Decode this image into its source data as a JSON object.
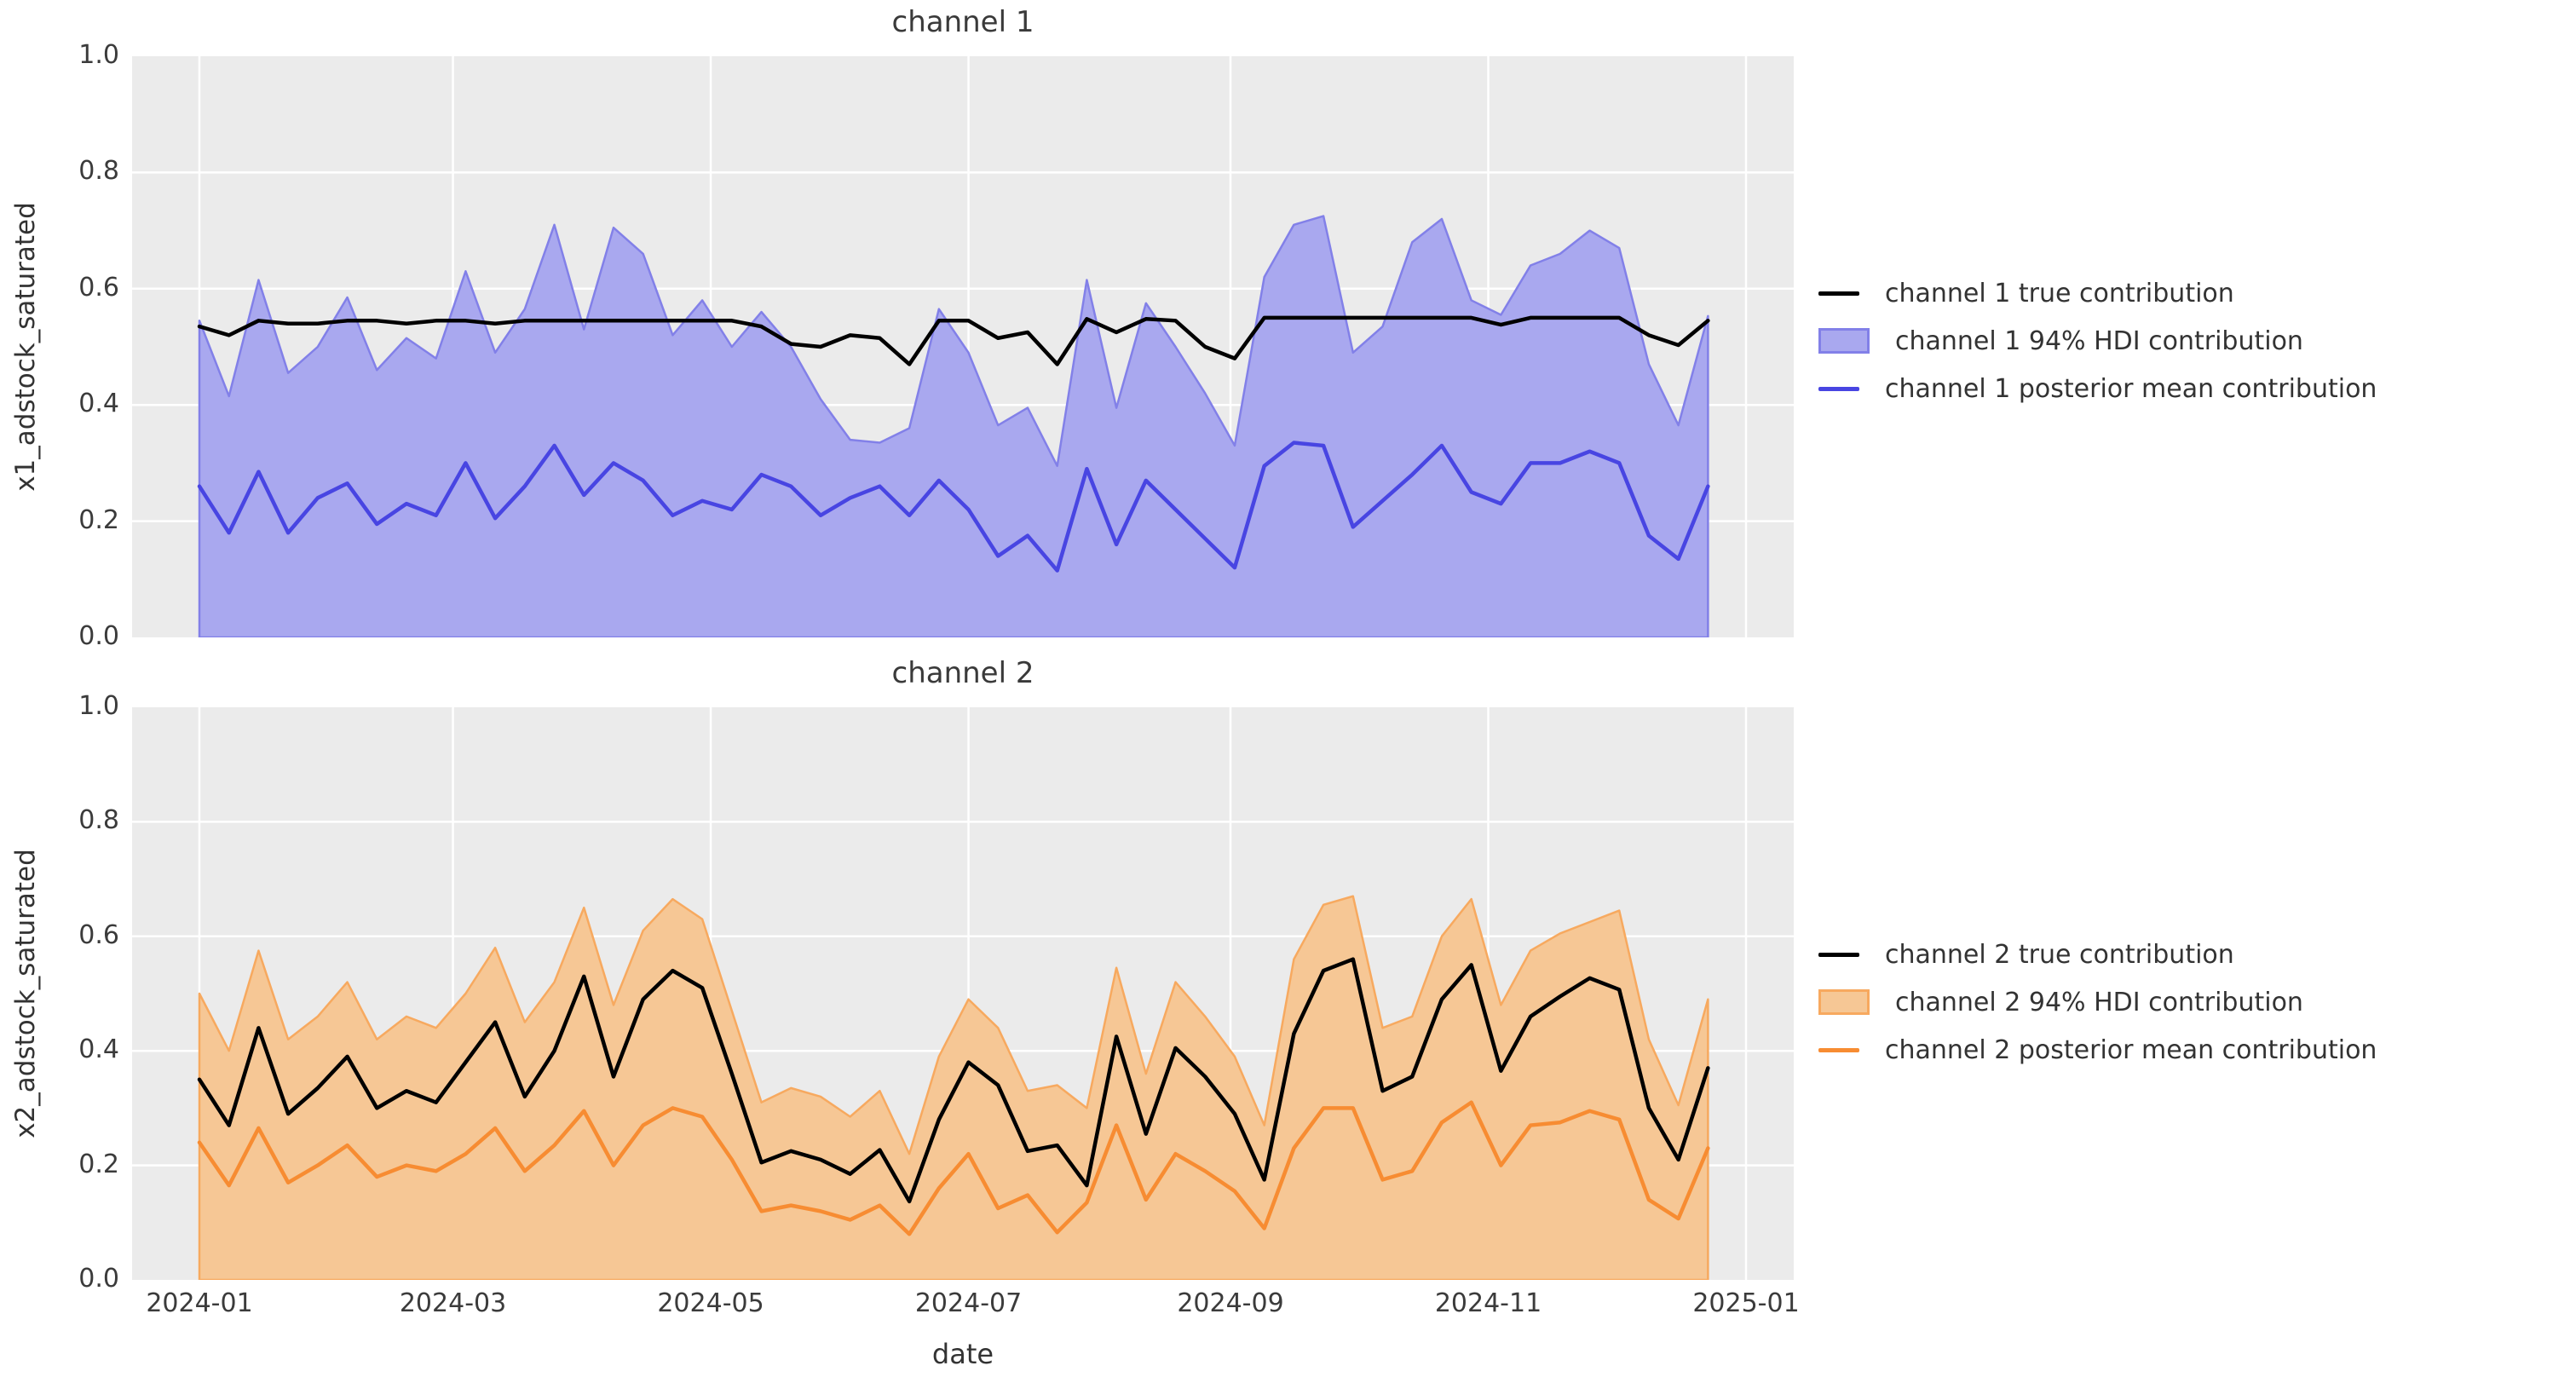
{
  "figure": {
    "background": "#ffffff",
    "plot_background": "#ebebeb",
    "grid_color": "#ffffff",
    "text_color": "#333333"
  },
  "axes": {
    "xlabel": "date",
    "y_tick_labels": [
      "0.0",
      "0.2",
      "0.4",
      "0.6",
      "0.8",
      "1.0"
    ],
    "x_ticks": [
      {
        "label": "2024-01",
        "day": 0
      },
      {
        "label": "2024-03",
        "day": 60
      },
      {
        "label": "2024-05",
        "day": 121
      },
      {
        "label": "2024-07",
        "day": 182
      },
      {
        "label": "2024-09",
        "day": 244
      },
      {
        "label": "2024-11",
        "day": 305
      },
      {
        "label": "2025-01",
        "day": 366
      }
    ]
  },
  "chart_data": [
    {
      "type": "area",
      "title": "channel 1",
      "ylabel": "x1_adstock_saturated",
      "xlabel": "date",
      "ylim": [
        0.0,
        1.0
      ],
      "x_start": "2024-01-01",
      "x_step_days": 7,
      "n_points": 52,
      "grid": true,
      "legend_position": "outside-right",
      "colors": {
        "true_line": "#000000",
        "mean_line": "#4845e2",
        "band_fill": "#a9a8ef",
        "band_edge": "#8280e8"
      },
      "legend": [
        {
          "label": "channel 1 true contribution",
          "marker": "line",
          "color": "#000000"
        },
        {
          "label": "channel 1 94% HDI contribution",
          "marker": "patch",
          "color": "#a9a8ef",
          "edge": "#8280e8"
        },
        {
          "label": "channel 1 posterior mean contribution",
          "marker": "line",
          "color": "#4845e2"
        }
      ],
      "series": [
        {
          "name": "channel 1 true contribution",
          "values": [
            0.535,
            0.52,
            0.545,
            0.54,
            0.54,
            0.545,
            0.545,
            0.54,
            0.545,
            0.545,
            0.54,
            0.545,
            0.545,
            0.545,
            0.545,
            0.545,
            0.545,
            0.545,
            0.545,
            0.535,
            0.505,
            0.5,
            0.52,
            0.515,
            0.47,
            0.545,
            0.545,
            0.515,
            0.525,
            0.47,
            0.548,
            0.525,
            0.548,
            0.545,
            0.5,
            0.48,
            0.55,
            0.55,
            0.55,
            0.55,
            0.55,
            0.55,
            0.55,
            0.55,
            0.538,
            0.55,
            0.55,
            0.55,
            0.55,
            0.52,
            0.503,
            0.545
          ]
        },
        {
          "name": "channel 1 94% HDI contribution",
          "band_low": 0.0,
          "band_high": [
            0.545,
            0.415,
            0.615,
            0.455,
            0.5,
            0.585,
            0.46,
            0.515,
            0.48,
            0.63,
            0.49,
            0.565,
            0.71,
            0.53,
            0.705,
            0.66,
            0.52,
            0.58,
            0.5,
            0.56,
            0.5,
            0.41,
            0.34,
            0.335,
            0.36,
            0.565,
            0.49,
            0.365,
            0.395,
            0.295,
            0.615,
            0.395,
            0.575,
            0.5,
            0.42,
            0.33,
            0.62,
            0.71,
            0.725,
            0.49,
            0.535,
            0.68,
            0.72,
            0.58,
            0.555,
            0.64,
            0.66,
            0.7,
            0.67,
            0.47,
            0.365,
            0.553
          ]
        },
        {
          "name": "channel 1 posterior mean contribution",
          "values": [
            0.26,
            0.18,
            0.285,
            0.18,
            0.24,
            0.265,
            0.195,
            0.23,
            0.21,
            0.3,
            0.205,
            0.26,
            0.33,
            0.245,
            0.3,
            0.27,
            0.21,
            0.235,
            0.22,
            0.28,
            0.26,
            0.21,
            0.24,
            0.26,
            0.21,
            0.27,
            0.22,
            0.14,
            0.175,
            0.115,
            0.29,
            0.16,
            0.27,
            0.22,
            0.17,
            0.12,
            0.295,
            0.335,
            0.33,
            0.19,
            0.235,
            0.28,
            0.33,
            0.25,
            0.23,
            0.3,
            0.3,
            0.32,
            0.3,
            0.175,
            0.135,
            0.26
          ]
        }
      ]
    },
    {
      "type": "area",
      "title": "channel 2",
      "ylabel": "x2_adstock_saturated",
      "xlabel": "date",
      "ylim": [
        0.0,
        1.0
      ],
      "x_start": "2024-01-01",
      "x_step_days": 7,
      "n_points": 52,
      "grid": true,
      "legend_position": "outside-right",
      "colors": {
        "true_line": "#000000",
        "mean_line": "#f78c32",
        "band_fill": "#f6c795",
        "band_edge": "#f7a95f"
      },
      "legend": [
        {
          "label": "channel 2 true contribution",
          "marker": "line",
          "color": "#000000"
        },
        {
          "label": "channel 2 94% HDI contribution",
          "marker": "patch",
          "color": "#f6c795",
          "edge": "#f7a95f"
        },
        {
          "label": "channel 2 posterior mean contribution",
          "marker": "line",
          "color": "#f78c32"
        }
      ],
      "series": [
        {
          "name": "channel 2 true contribution",
          "values": [
            0.35,
            0.27,
            0.44,
            0.29,
            0.335,
            0.39,
            0.3,
            0.33,
            0.31,
            0.38,
            0.45,
            0.32,
            0.4,
            0.53,
            0.355,
            0.49,
            0.54,
            0.51,
            0.36,
            0.205,
            0.225,
            0.21,
            0.185,
            0.227,
            0.137,
            0.28,
            0.38,
            0.34,
            0.225,
            0.235,
            0.165,
            0.425,
            0.255,
            0.405,
            0.355,
            0.29,
            0.175,
            0.43,
            0.54,
            0.56,
            0.33,
            0.355,
            0.49,
            0.55,
            0.365,
            0.46,
            0.495,
            0.527,
            0.507,
            0.3,
            0.21,
            0.37
          ]
        },
        {
          "name": "channel 2 94% HDI contribution",
          "band_low": 0.0,
          "band_high": [
            0.5,
            0.4,
            0.575,
            0.42,
            0.46,
            0.52,
            0.42,
            0.46,
            0.44,
            0.5,
            0.58,
            0.45,
            0.52,
            0.65,
            0.48,
            0.61,
            0.665,
            0.63,
            0.47,
            0.31,
            0.335,
            0.32,
            0.285,
            0.33,
            0.22,
            0.39,
            0.49,
            0.44,
            0.33,
            0.34,
            0.3,
            0.545,
            0.36,
            0.52,
            0.46,
            0.39,
            0.27,
            0.56,
            0.655,
            0.67,
            0.44,
            0.46,
            0.6,
            0.665,
            0.48,
            0.575,
            0.605,
            0.625,
            0.645,
            0.42,
            0.305,
            0.49
          ]
        },
        {
          "name": "channel 2 posterior mean contribution",
          "values": [
            0.24,
            0.165,
            0.265,
            0.17,
            0.2,
            0.235,
            0.18,
            0.2,
            0.19,
            0.22,
            0.265,
            0.19,
            0.235,
            0.295,
            0.2,
            0.27,
            0.3,
            0.285,
            0.21,
            0.12,
            0.13,
            0.12,
            0.105,
            0.13,
            0.08,
            0.16,
            0.22,
            0.125,
            0.148,
            0.083,
            0.135,
            0.27,
            0.14,
            0.22,
            0.19,
            0.155,
            0.09,
            0.23,
            0.3,
            0.3,
            0.175,
            0.19,
            0.275,
            0.31,
            0.2,
            0.27,
            0.275,
            0.295,
            0.28,
            0.14,
            0.107,
            0.23
          ]
        }
      ]
    }
  ]
}
